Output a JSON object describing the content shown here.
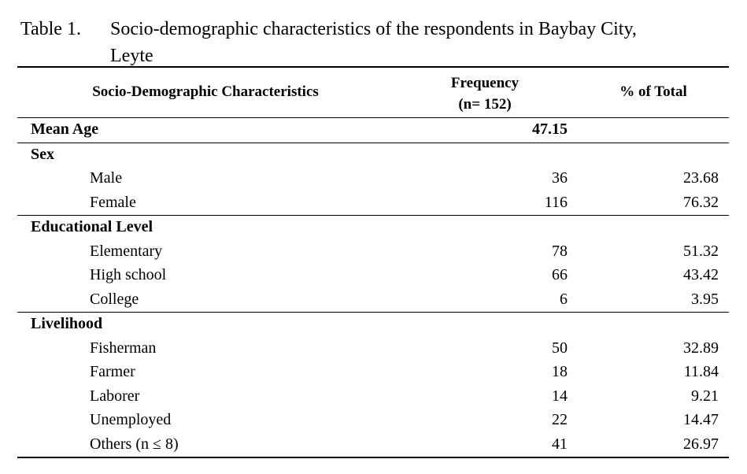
{
  "caption": {
    "number": "Table 1.",
    "title_line1": "Socio-demographic characteristics of the respondents in Baybay City,",
    "title_line2": "Leyte"
  },
  "header": {
    "characteristics": "Socio-Demographic Characteristics",
    "frequency_line1": "Frequency",
    "frequency_line2": "(n= 152)",
    "percent": "% of Total"
  },
  "mean_age": {
    "label": "Mean  Age",
    "value": "47.15"
  },
  "sex": {
    "label": "Sex",
    "rows": [
      {
        "label": "Male",
        "freq": "36",
        "pct": "23.68"
      },
      {
        "label": "Female",
        "freq": "116",
        "pct": "76.32"
      }
    ]
  },
  "education": {
    "label": "Educational Level",
    "rows": [
      {
        "label": "Elementary",
        "freq": "78",
        "pct": "51.32"
      },
      {
        "label": "High school",
        "freq": "66",
        "pct": "43.42"
      },
      {
        "label": "College",
        "freq": "6",
        "pct": "3.95"
      }
    ]
  },
  "livelihood": {
    "label": "Livelihood",
    "rows": [
      {
        "label": "Fisherman",
        "freq": "50",
        "pct": "32.89"
      },
      {
        "label": "Farmer",
        "freq": "18",
        "pct": "11.84"
      },
      {
        "label": "Laborer",
        "freq": "14",
        "pct": "9.21"
      },
      {
        "label": "Unemployed",
        "freq": "22",
        "pct": "14.47"
      },
      {
        "label": "Others (n ≤ 8)",
        "freq": "41",
        "pct": "26.97"
      }
    ]
  }
}
